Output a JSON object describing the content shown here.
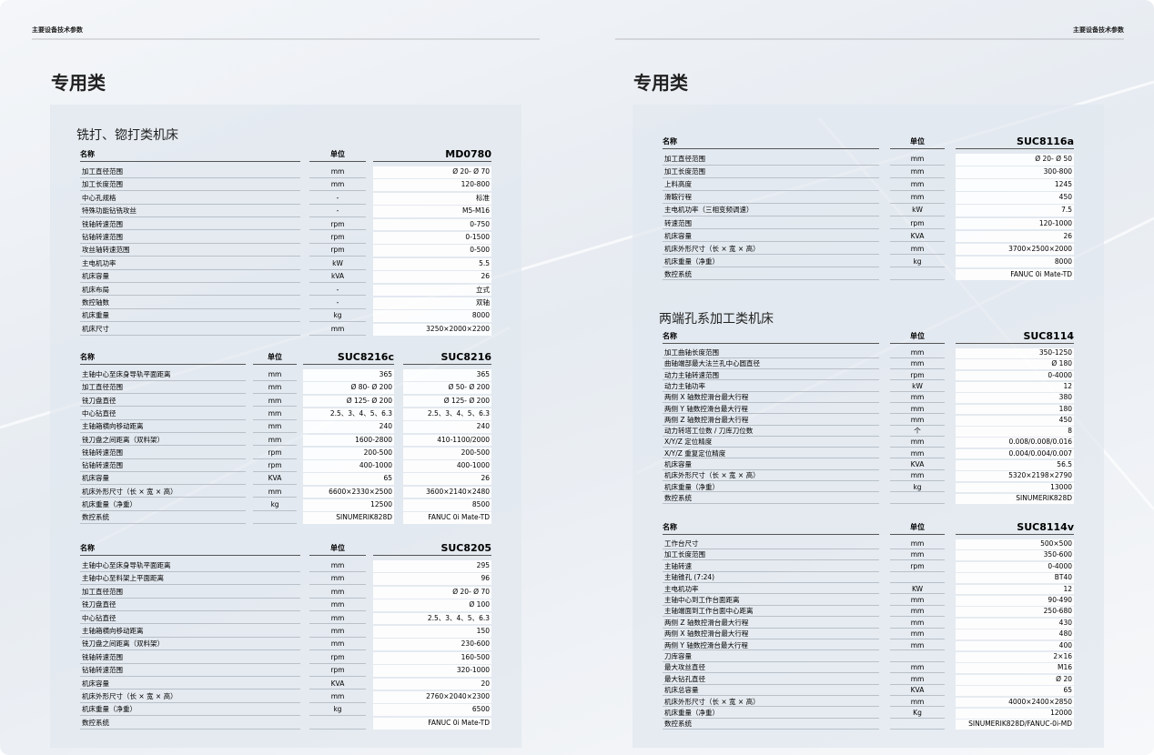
{
  "left": {
    "header": "主要设备技术参数",
    "heading": "专用类",
    "tables": [
      {
        "title": "铣打、锪打类机床",
        "columns": [
          "名称",
          "单位",
          "MD0780"
        ],
        "rows": [
          [
            "加工直径范围",
            "mm",
            "Ø 20- Ø 70"
          ],
          [
            "加工长度范围",
            "mm",
            "120-800"
          ],
          [
            "中心孔规格",
            "-",
            "标准"
          ],
          [
            "特殊功能钻铣攻丝",
            "-",
            "M5-M16"
          ],
          [
            "铣轴转速范围",
            "rpm",
            "0-750"
          ],
          [
            "钻轴转速范围",
            "rpm",
            "0-1500"
          ],
          [
            "攻丝轴转速范围",
            "rpm",
            "0-500"
          ],
          [
            "主电机功率",
            "kW",
            "5.5"
          ],
          [
            "机床容量",
            "kVA",
            "26"
          ],
          [
            "机床布局",
            "-",
            "立式"
          ],
          [
            "数控轴数",
            "-",
            "双轴"
          ],
          [
            "机床重量",
            "kg",
            "8000"
          ],
          [
            "机床尺寸",
            "mm",
            "3250×2000×2200"
          ]
        ]
      },
      {
        "columns": [
          "名称",
          "单位",
          "SUC8216c",
          "SUC8216"
        ],
        "rows": [
          [
            "主轴中心至床身导轨平面距离",
            "mm",
            "365",
            "365"
          ],
          [
            "加工直径范围",
            "mm",
            "Ø 80- Ø 200",
            "Ø 50- Ø 200"
          ],
          [
            "铣刀盘直径",
            "mm",
            "Ø 125- Ø 200",
            "Ø 125- Ø 200"
          ],
          [
            "中心钻直径",
            "mm",
            "2.5、3、4、5、6.3",
            "2.5、3、4、5、6.3"
          ],
          [
            "主轴箱横向移动距离",
            "mm",
            "240",
            "240"
          ],
          [
            "铣刀盘之间距离（双料架）",
            "mm",
            "1600-2800",
            "410-1100/2000"
          ],
          [
            "铣轴转速范围",
            "rpm",
            "200-500",
            "200-500"
          ],
          [
            "钻轴转速范围",
            "rpm",
            "400-1000",
            "400-1000"
          ],
          [
            "机床容量",
            "KVA",
            "65",
            "26"
          ],
          [
            "机床外形尺寸（长 × 宽 × 高）",
            "mm",
            "6600×2330×2500",
            "3600×2140×2480"
          ],
          [
            "机床重量（净重）",
            "kg",
            "12500",
            "8500"
          ],
          [
            "数控系统",
            null,
            "SINUMERIK828D",
            "FANUC 0i Mate-TD"
          ]
        ]
      },
      {
        "columns": [
          "名称",
          "单位",
          "SUC8205"
        ],
        "rows": [
          [
            "主轴中心至床身导轨平面距离",
            "mm",
            "295"
          ],
          [
            "主轴中心至料架上平面距离",
            "mm",
            "96"
          ],
          [
            "加工直径范围",
            "mm",
            "Ø 20- Ø 70"
          ],
          [
            "铣刀盘直径",
            "mm",
            "Ø 100"
          ],
          [
            "中心钻直径",
            "mm",
            "2.5、3、4、5、6.3"
          ],
          [
            "主轴箱横向移动距离",
            "mm",
            "150"
          ],
          [
            "铣刀盘之间距离（双料架）",
            "mm",
            "230-600"
          ],
          [
            "铣轴转速范围",
            "rpm",
            "160-500"
          ],
          [
            "钻轴转速范围",
            "rpm",
            "320-1000"
          ],
          [
            "机床容量",
            "KVA",
            "20"
          ],
          [
            "机床外形尺寸（长 × 宽 × 高）",
            "mm",
            "2760×2040×2300"
          ],
          [
            "机床重量（净重）",
            "kg",
            "6500"
          ],
          [
            "数控系统",
            null,
            "FANUC 0i Mate-TD"
          ]
        ]
      }
    ]
  },
  "right": {
    "header": "主要设备技术参数",
    "heading": "专用类",
    "tables": [
      {
        "columns": [
          "名称",
          "单位",
          "SUC8116a"
        ],
        "rows": [
          [
            "加工直径范围",
            "mm",
            "Ø 20- Ø 50"
          ],
          [
            "加工长度范围",
            "mm",
            "300-800"
          ],
          [
            "上料高度",
            "mm",
            "1245"
          ],
          [
            "滑鞍行程",
            "mm",
            "450"
          ],
          [
            "主电机功率（三相变频调速）",
            "kW",
            "7.5"
          ],
          [
            "转速范围",
            "rpm",
            "120-1000"
          ],
          [
            "机床容量",
            "KVA",
            "26"
          ],
          [
            "机床外形尺寸（长 × 宽 × 高）",
            "mm",
            "3700×2500×2000"
          ],
          [
            "机床重量（净重）",
            "kg",
            "8000"
          ],
          [
            "数控系统",
            null,
            "FANUC 0i Mate-TD"
          ]
        ]
      },
      {
        "title": "两端孔系加工类机床",
        "columns": [
          "名称",
          "单位",
          "SUC8114"
        ],
        "rows": [
          [
            "加工曲轴长度范围",
            "mm",
            "350-1250"
          ],
          [
            "曲轴端部最大法兰孔中心圆直径",
            "mm",
            "Ø 180"
          ],
          [
            "动力主轴转速范围",
            "rpm",
            "0-4000"
          ],
          [
            "动力主轴功率",
            "kW",
            "12"
          ],
          [
            "两侧 X 轴数控滑台最大行程",
            "mm",
            "380"
          ],
          [
            "两侧 Y 轴数控滑台最大行程",
            "mm",
            "180"
          ],
          [
            "两侧 Z 轴数控滑台最大行程",
            "mm",
            "450"
          ],
          [
            "动力转塔工位数 / 刀库刀位数",
            "个",
            "8"
          ],
          [
            "X/Y/Z 定位精度",
            "mm",
            "0.008/0.008/0.016"
          ],
          [
            "X/Y/Z 重复定位精度",
            "mm",
            "0.004/0.004/0.007"
          ],
          [
            "机床容量",
            "KVA",
            "56.5"
          ],
          [
            "机床外形尺寸（长 × 宽 × 高）",
            "mm",
            "5320×2198×2790"
          ],
          [
            "机床重量（净重）",
            "kg",
            "13000"
          ],
          [
            "数控系统",
            null,
            "SINUMERIK828D"
          ]
        ]
      },
      {
        "columns": [
          "名称",
          "单位",
          "SUC8114v"
        ],
        "rows": [
          [
            "工作台尺寸",
            "mm",
            "500×500"
          ],
          [
            "加工长度范围",
            "mm",
            "350-600"
          ],
          [
            "主轴转速",
            "rpm",
            "0-4000"
          ],
          [
            "主轴锥孔 (7:24)",
            null,
            "BT40"
          ],
          [
            "主电机功率",
            "KW",
            "12"
          ],
          [
            "主轴中心到工作台面距离",
            "mm",
            "90-490"
          ],
          [
            "主轴端面到工作台面中心距离",
            "mm",
            "250-680"
          ],
          [
            "两侧 Z 轴数控滑台最大行程",
            "mm",
            "430"
          ],
          [
            "两侧 X 轴数控滑台最大行程",
            "mm",
            "480"
          ],
          [
            "两侧 Y 轴数控滑台最大行程",
            "mm",
            "400"
          ],
          [
            "刀库容量",
            null,
            "2×16"
          ],
          [
            "最大攻丝直径",
            "mm",
            "M16"
          ],
          [
            "最大钻孔直径",
            "mm",
            "Ø 20"
          ],
          [
            "机床总容量",
            "KVA",
            "65"
          ],
          [
            "机床外形尺寸（长 × 宽 × 高）",
            "mm",
            "4000×2400×2850"
          ],
          [
            "机床重量（净重）",
            "Kg",
            "12000"
          ],
          [
            "数控系统",
            null,
            "SINUMERIK828D/FANUC-0i-MD"
          ]
        ]
      }
    ]
  }
}
